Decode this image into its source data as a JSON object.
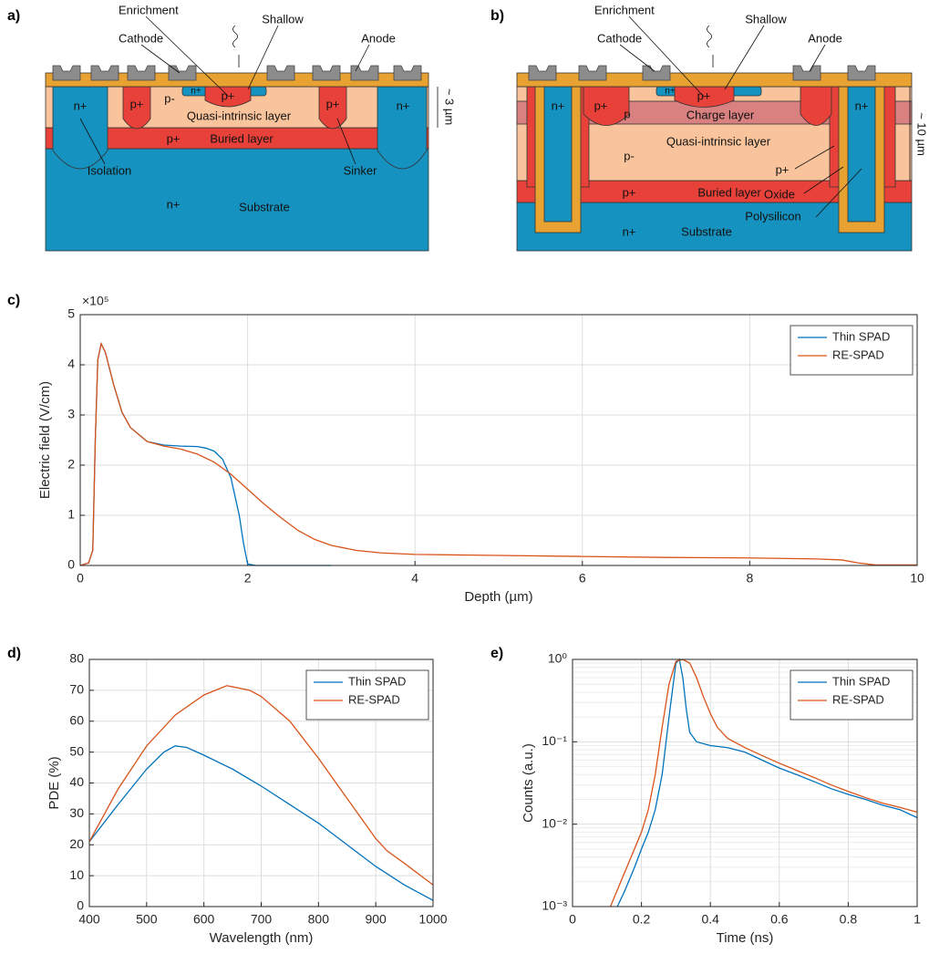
{
  "diagrams": [
    {
      "panel": "a)",
      "labels": [
        "Enrichment",
        "Shallow",
        "Cathode",
        "Anode",
        "n+",
        "p+",
        "p-",
        "n+",
        "p+",
        "Quasi-intrinsic layer",
        "p+",
        "n+",
        "p+",
        "Buried layer",
        "Isolation",
        "Sinker",
        "n+",
        "Substrate",
        "~ 3 µm"
      ]
    },
    {
      "panel": "b)",
      "labels": [
        "Enrichment",
        "Shallow",
        "Cathode",
        "Anode",
        "n+",
        "p+",
        "p",
        "Charge layer",
        "n+",
        "p+",
        "n+",
        "Quasi-intrinsic layer",
        "p-",
        "p+",
        "p+",
        "Buried layer",
        "Oxide",
        "Polysilicon",
        "n+",
        "Substrate",
        "~ 10 µm"
      ]
    }
  ],
  "chart_data": [
    {
      "type": "line",
      "panel": "c)",
      "multiplier": "×10⁵",
      "xlabel": "Depth (µm)",
      "ylabel": "Electric field (V/cm)",
      "xlim": [
        0,
        10
      ],
      "xticks": [
        0,
        2,
        4,
        6,
        8,
        10
      ],
      "ylim": [
        0,
        5
      ],
      "yticks": [
        0,
        1,
        2,
        3,
        4,
        5
      ],
      "grid": true,
      "legend": "upper right",
      "series": [
        {
          "name": "Thin SPAD",
          "color": "#0072BD",
          "x": [
            0,
            0.1,
            0.15,
            0.18,
            0.21,
            0.25,
            0.3,
            0.4,
            0.5,
            0.6,
            0.8,
            1.0,
            1.2,
            1.4,
            1.5,
            1.6,
            1.7,
            1.8,
            1.9,
            1.95,
            2.0,
            2.1,
            3.0
          ],
          "values": [
            0,
            0.05,
            0.3,
            2.5,
            4.1,
            4.42,
            4.25,
            3.6,
            3.05,
            2.75,
            2.47,
            2.4,
            2.38,
            2.37,
            2.34,
            2.28,
            2.12,
            1.75,
            1.0,
            0.45,
            0.03,
            0,
            0
          ]
        },
        {
          "name": "RE-SPAD",
          "color": "#D95319",
          "x": [
            0,
            0.1,
            0.15,
            0.18,
            0.21,
            0.25,
            0.3,
            0.4,
            0.5,
            0.6,
            0.8,
            1.0,
            1.2,
            1.4,
            1.6,
            1.8,
            2.0,
            2.2,
            2.4,
            2.6,
            2.8,
            3.0,
            3.3,
            3.6,
            4.0,
            5.0,
            6.0,
            7.0,
            8.0,
            8.8,
            9.1,
            9.3,
            9.5,
            10.0
          ],
          "values": [
            0,
            0.05,
            0.3,
            2.5,
            4.1,
            4.42,
            4.25,
            3.6,
            3.05,
            2.75,
            2.47,
            2.38,
            2.32,
            2.22,
            2.06,
            1.82,
            1.52,
            1.22,
            0.95,
            0.7,
            0.52,
            0.4,
            0.3,
            0.25,
            0.22,
            0.2,
            0.18,
            0.16,
            0.15,
            0.13,
            0.11,
            0.05,
            0.01,
            0.01
          ]
        }
      ]
    },
    {
      "type": "line",
      "panel": "d)",
      "xlabel": "Wavelength (nm)",
      "ylabel": "PDE (%)",
      "xlim": [
        400,
        1000
      ],
      "xticks": [
        400,
        500,
        600,
        700,
        800,
        900,
        1000
      ],
      "ylim": [
        0,
        80
      ],
      "yticks": [
        0,
        10,
        20,
        30,
        40,
        50,
        60,
        70,
        80
      ],
      "grid": true,
      "legend": "upper right",
      "series": [
        {
          "name": "Thin SPAD",
          "color": "#0072BD",
          "x": [
            400,
            450,
            500,
            530,
            550,
            570,
            600,
            650,
            700,
            750,
            800,
            850,
            900,
            950,
            1000
          ],
          "values": [
            21,
            33,
            44.5,
            50,
            52,
            51.5,
            49,
            44.5,
            39,
            33,
            27,
            20,
            13,
            7,
            2
          ]
        },
        {
          "name": "RE-SPAD",
          "color": "#D95319",
          "x": [
            400,
            450,
            500,
            550,
            600,
            640,
            680,
            700,
            750,
            800,
            850,
            900,
            920,
            950,
            1000
          ],
          "values": [
            21,
            38,
            52,
            62,
            68.5,
            71.5,
            70,
            68,
            60,
            48,
            35,
            22,
            18,
            14,
            7
          ]
        }
      ]
    },
    {
      "type": "line",
      "panel": "e)",
      "xlabel": "Time (ns)",
      "ylabel": "Counts (a.u.)",
      "log": true,
      "minor_grid": true,
      "xlim": [
        0,
        1
      ],
      "xticks": [
        0,
        0.2,
        0.4,
        0.6,
        0.8,
        1
      ],
      "ylim": [
        0.001,
        1
      ],
      "yticks": [
        {
          "value": 0.001,
          "label": "10⁻³"
        },
        {
          "value": 0.01,
          "label": "10⁻²"
        },
        {
          "value": 0.1,
          "label": "10⁻¹"
        },
        {
          "value": 1,
          "label": "10⁰"
        }
      ],
      "grid": true,
      "legend": "upper right",
      "series": [
        {
          "name": "Thin SPAD",
          "color": "#0072BD",
          "x": [
            0.13,
            0.15,
            0.18,
            0.2,
            0.22,
            0.24,
            0.26,
            0.28,
            0.3,
            0.31,
            0.32,
            0.33,
            0.34,
            0.36,
            0.4,
            0.45,
            0.5,
            0.55,
            0.6,
            0.65,
            0.7,
            0.75,
            0.8,
            0.85,
            0.9,
            0.95,
            1.0
          ],
          "values": [
            0.001,
            0.0015,
            0.003,
            0.005,
            0.008,
            0.015,
            0.04,
            0.2,
            0.9,
            1.0,
            0.6,
            0.25,
            0.13,
            0.1,
            0.09,
            0.085,
            0.075,
            0.06,
            0.048,
            0.04,
            0.033,
            0.027,
            0.023,
            0.02,
            0.017,
            0.015,
            0.012
          ]
        },
        {
          "name": "RE-SPAD",
          "color": "#D95319",
          "x": [
            0.11,
            0.14,
            0.17,
            0.2,
            0.22,
            0.24,
            0.26,
            0.28,
            0.3,
            0.32,
            0.34,
            0.36,
            0.38,
            0.4,
            0.42,
            0.45,
            0.5,
            0.55,
            0.6,
            0.65,
            0.7,
            0.75,
            0.8,
            0.85,
            0.9,
            0.95,
            1.0
          ],
          "values": [
            0.001,
            0.002,
            0.004,
            0.008,
            0.015,
            0.04,
            0.15,
            0.5,
            0.95,
            1.0,
            0.9,
            0.6,
            0.35,
            0.22,
            0.15,
            0.11,
            0.085,
            0.068,
            0.055,
            0.045,
            0.037,
            0.03,
            0.025,
            0.021,
            0.018,
            0.016,
            0.014
          ]
        }
      ]
    }
  ]
}
